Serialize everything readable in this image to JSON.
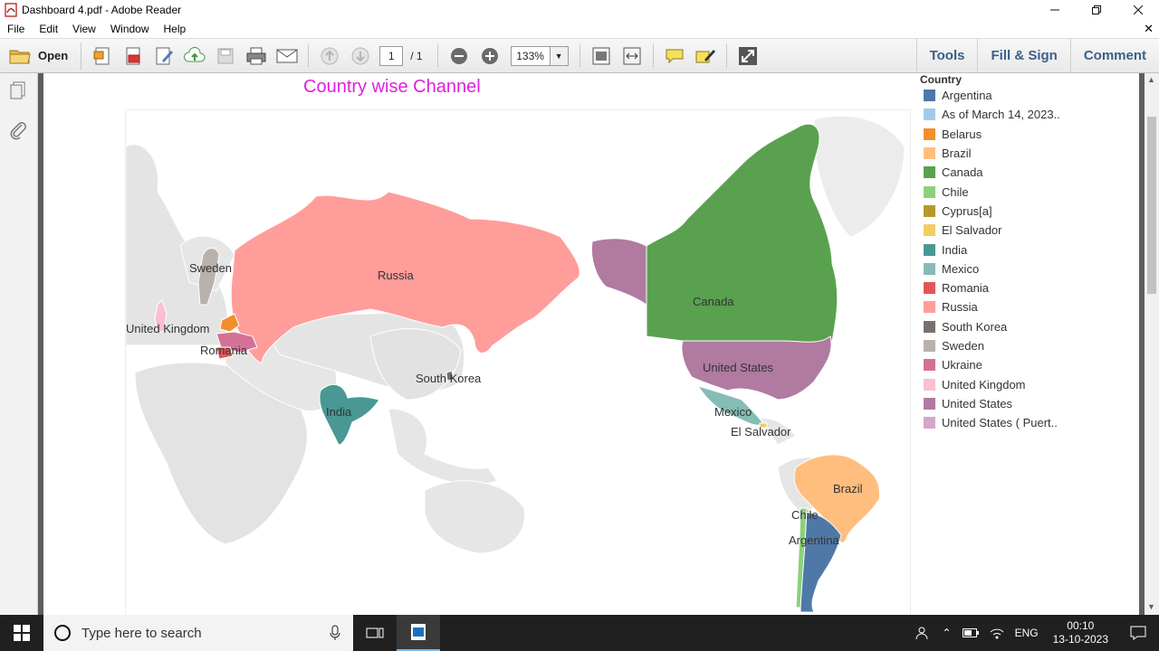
{
  "window": {
    "title": "Dashboard 4.pdf - Adobe Reader"
  },
  "menu": {
    "items": [
      "File",
      "Edit",
      "View",
      "Window",
      "Help"
    ]
  },
  "toolbar": {
    "open_label": "Open",
    "page_current": "1",
    "page_total": "/ 1",
    "zoom": "133%",
    "tools_label": "Tools",
    "fill_sign_label": "Fill & Sign",
    "comment_label": "Comment"
  },
  "chart_data": {
    "type": "map",
    "title": "Country wise Channel",
    "legend_title": "Country",
    "legend": [
      {
        "label": "Argentina",
        "color": "#4e79a7"
      },
      {
        "label": "As of March 14, 2023..",
        "color": "#a0cbe8"
      },
      {
        "label": "Belarus",
        "color": "#f28e2b"
      },
      {
        "label": "Brazil",
        "color": "#ffbe7d"
      },
      {
        "label": "Canada",
        "color": "#59a14f"
      },
      {
        "label": "Chile",
        "color": "#8cd17d"
      },
      {
        "label": "Cyprus[a]",
        "color": "#b6992d"
      },
      {
        "label": "El Salvador",
        "color": "#f1ce63"
      },
      {
        "label": "India",
        "color": "#499894"
      },
      {
        "label": "Mexico",
        "color": "#86bcb6"
      },
      {
        "label": "Romania",
        "color": "#e15759"
      },
      {
        "label": "Russia",
        "color": "#ff9d9a"
      },
      {
        "label": "South Korea",
        "color": "#79706e"
      },
      {
        "label": "Sweden",
        "color": "#bab0ac"
      },
      {
        "label": "Ukraine",
        "color": "#d37295"
      },
      {
        "label": "United Kingdom",
        "color": "#fabfd2"
      },
      {
        "label": "United States",
        "color": "#b07aa1"
      },
      {
        "label": "United States ( Puert..",
        "color": "#d4a6c8"
      }
    ],
    "map_labels": [
      "Russia",
      "Sweden",
      "United Kingdom",
      "Romania",
      "South Korea",
      "India",
      "Canada",
      "United States",
      "Mexico",
      "El Salvador",
      "Brazil",
      "Chile",
      "Argentina"
    ]
  },
  "taskbar": {
    "search_placeholder": "Type here to search",
    "lang": "ENG",
    "time": "00:10",
    "date": "13-10-2023"
  }
}
